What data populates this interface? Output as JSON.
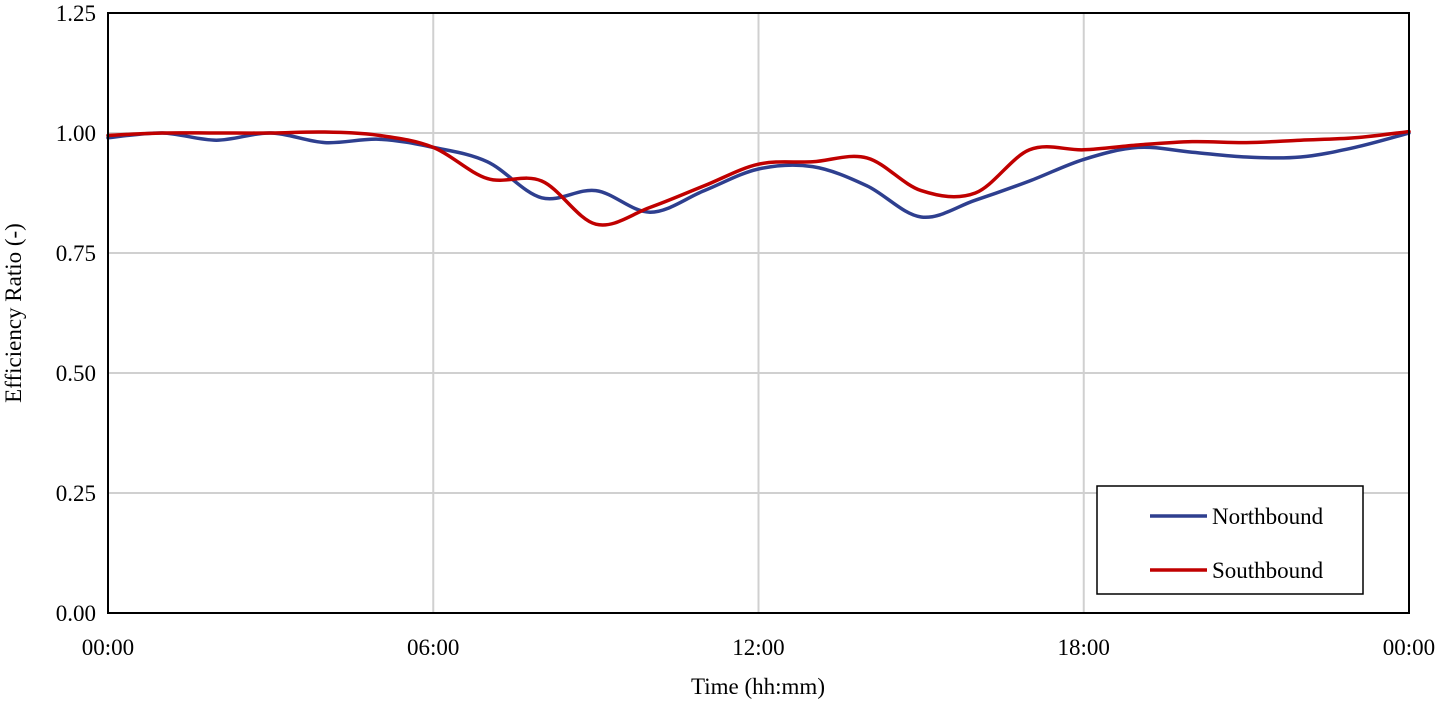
{
  "chart_data": {
    "type": "line",
    "title": "",
    "xlabel": "Time (hh:mm)",
    "ylabel": "Efficiency Ratio (-)",
    "x_unit": "hours",
    "xlim": [
      0,
      24
    ],
    "ylim": [
      0,
      1.25
    ],
    "x_ticks": [
      0,
      6,
      12,
      18,
      24
    ],
    "x_tick_labels": [
      "00:00",
      "06:00",
      "12:00",
      "18:00",
      "00:00"
    ],
    "y_ticks": [
      0,
      0.25,
      0.5,
      0.75,
      1.0,
      1.25
    ],
    "y_tick_labels": [
      "0.00",
      "0.25",
      "0.50",
      "0.75",
      "1.00",
      "1.25"
    ],
    "grid": true,
    "legend_position": "bottom-right",
    "series": [
      {
        "name": "Northbound",
        "color": "#2e3f8f",
        "x": [
          0,
          1,
          2,
          3,
          4,
          5,
          6,
          7,
          8,
          9,
          10,
          11,
          12,
          13,
          14,
          15,
          16,
          17,
          18,
          19,
          20,
          21,
          22,
          23,
          24
        ],
        "values": [
          0.99,
          1.0,
          0.985,
          1.0,
          0.98,
          0.987,
          0.97,
          0.94,
          0.865,
          0.88,
          0.835,
          0.88,
          0.925,
          0.93,
          0.89,
          0.825,
          0.86,
          0.9,
          0.945,
          0.97,
          0.96,
          0.95,
          0.95,
          0.97,
          1.0
        ]
      },
      {
        "name": "Southbound",
        "color": "#c00000",
        "x": [
          0,
          1,
          2,
          3,
          4,
          5,
          6,
          7,
          8,
          9,
          10,
          11,
          12,
          13,
          14,
          15,
          16,
          17,
          18,
          19,
          20,
          21,
          22,
          23,
          24
        ],
        "values": [
          0.995,
          1.0,
          1.0,
          1.0,
          1.002,
          0.995,
          0.97,
          0.905,
          0.9,
          0.81,
          0.845,
          0.89,
          0.935,
          0.94,
          0.948,
          0.88,
          0.875,
          0.965,
          0.965,
          0.975,
          0.982,
          0.98,
          0.985,
          0.99,
          1.003
        ]
      }
    ]
  }
}
